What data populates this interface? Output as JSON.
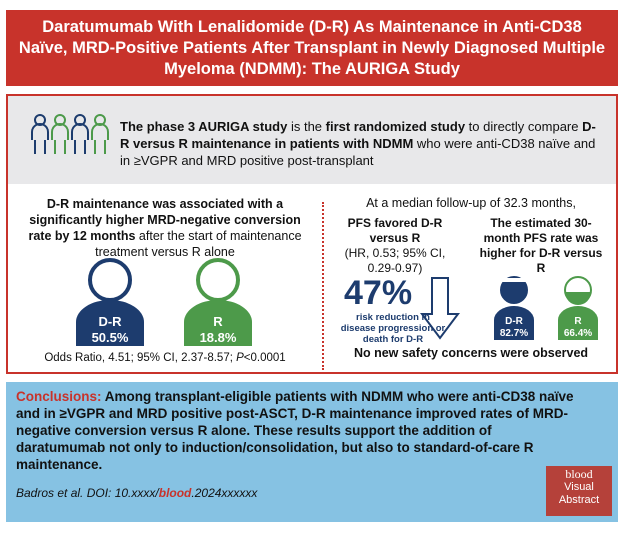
{
  "title": "Daratumumab With Lenalidomide (D-R) As Maintenance in Anti-CD38 Naïve, MRD-Positive Patients After Transplant in Newly Diagnosed Multiple Myeloma (NDMM): The AURIGA Study",
  "intro": {
    "icon": "patients-group-icon",
    "part1": "The phase 3 AURIGA study",
    "part2": " is the ",
    "part3": "first randomized study",
    "part4": " to directly compare ",
    "part5": "D-R versus R maintenance in patients with NDMM",
    "part6": " who were anti-CD38 naïve and in ≥VGPR and MRD positive post-transplant"
  },
  "left": {
    "head_bold": "D-R maintenance was associated with a significantly higher MRD-negative conversion rate by 12 months",
    "head_rest": " after the start of maintenance treatment versus R alone",
    "dr_label": "D-R",
    "dr_value": "50.5%",
    "r_label": "R",
    "r_value": "18.8%",
    "odds_text": "Odds Ratio, 4.51; 95% CI, 2.37-8.57; ",
    "odds_p": "P",
    "odds_p_value": "<0.0001"
  },
  "right": {
    "head": "At a median follow-up of 32.3 months,",
    "pfs_bold": "PFS favored D-R versus R",
    "pfs_ci": "(HR, 0.53; 95% CI, 0.29-0.97)",
    "big_value": "47%",
    "risk_text": "risk reduction in disease progression or death for D-R",
    "est_head": "The estimated 30-month PFS rate was higher for D-R versus R",
    "dr_label": "D-R",
    "dr_value": "82.7%",
    "r_label": "R",
    "r_value": "66.4%",
    "safety": "No new safety concerns were observed"
  },
  "conclusions": {
    "label": "Conclusions:",
    "text": " Among transplant-eligible patients with NDMM who were anti-CD38 naïve and in ≥VGPR and MRD positive post-ASCT, D-R maintenance improved rates of MRD-negative conversion versus R alone. These results support the addition of daratumumab not only to induction/consolidation, but also to standard-of-care R maintenance."
  },
  "citation": {
    "prefix": "Badros et al. DOI: 10.xxxx/",
    "journal": "blood",
    "suffix": ".2024xxxxxx"
  },
  "badge": {
    "line1": "blood",
    "line2": "Visual",
    "line3": "Abstract"
  },
  "colors": {
    "brand_red": "#c8332b",
    "navy": "#1d3c6e",
    "green": "#4d9a4a",
    "light_blue": "#86c2e3",
    "gray_band": "#e8e8ea"
  }
}
